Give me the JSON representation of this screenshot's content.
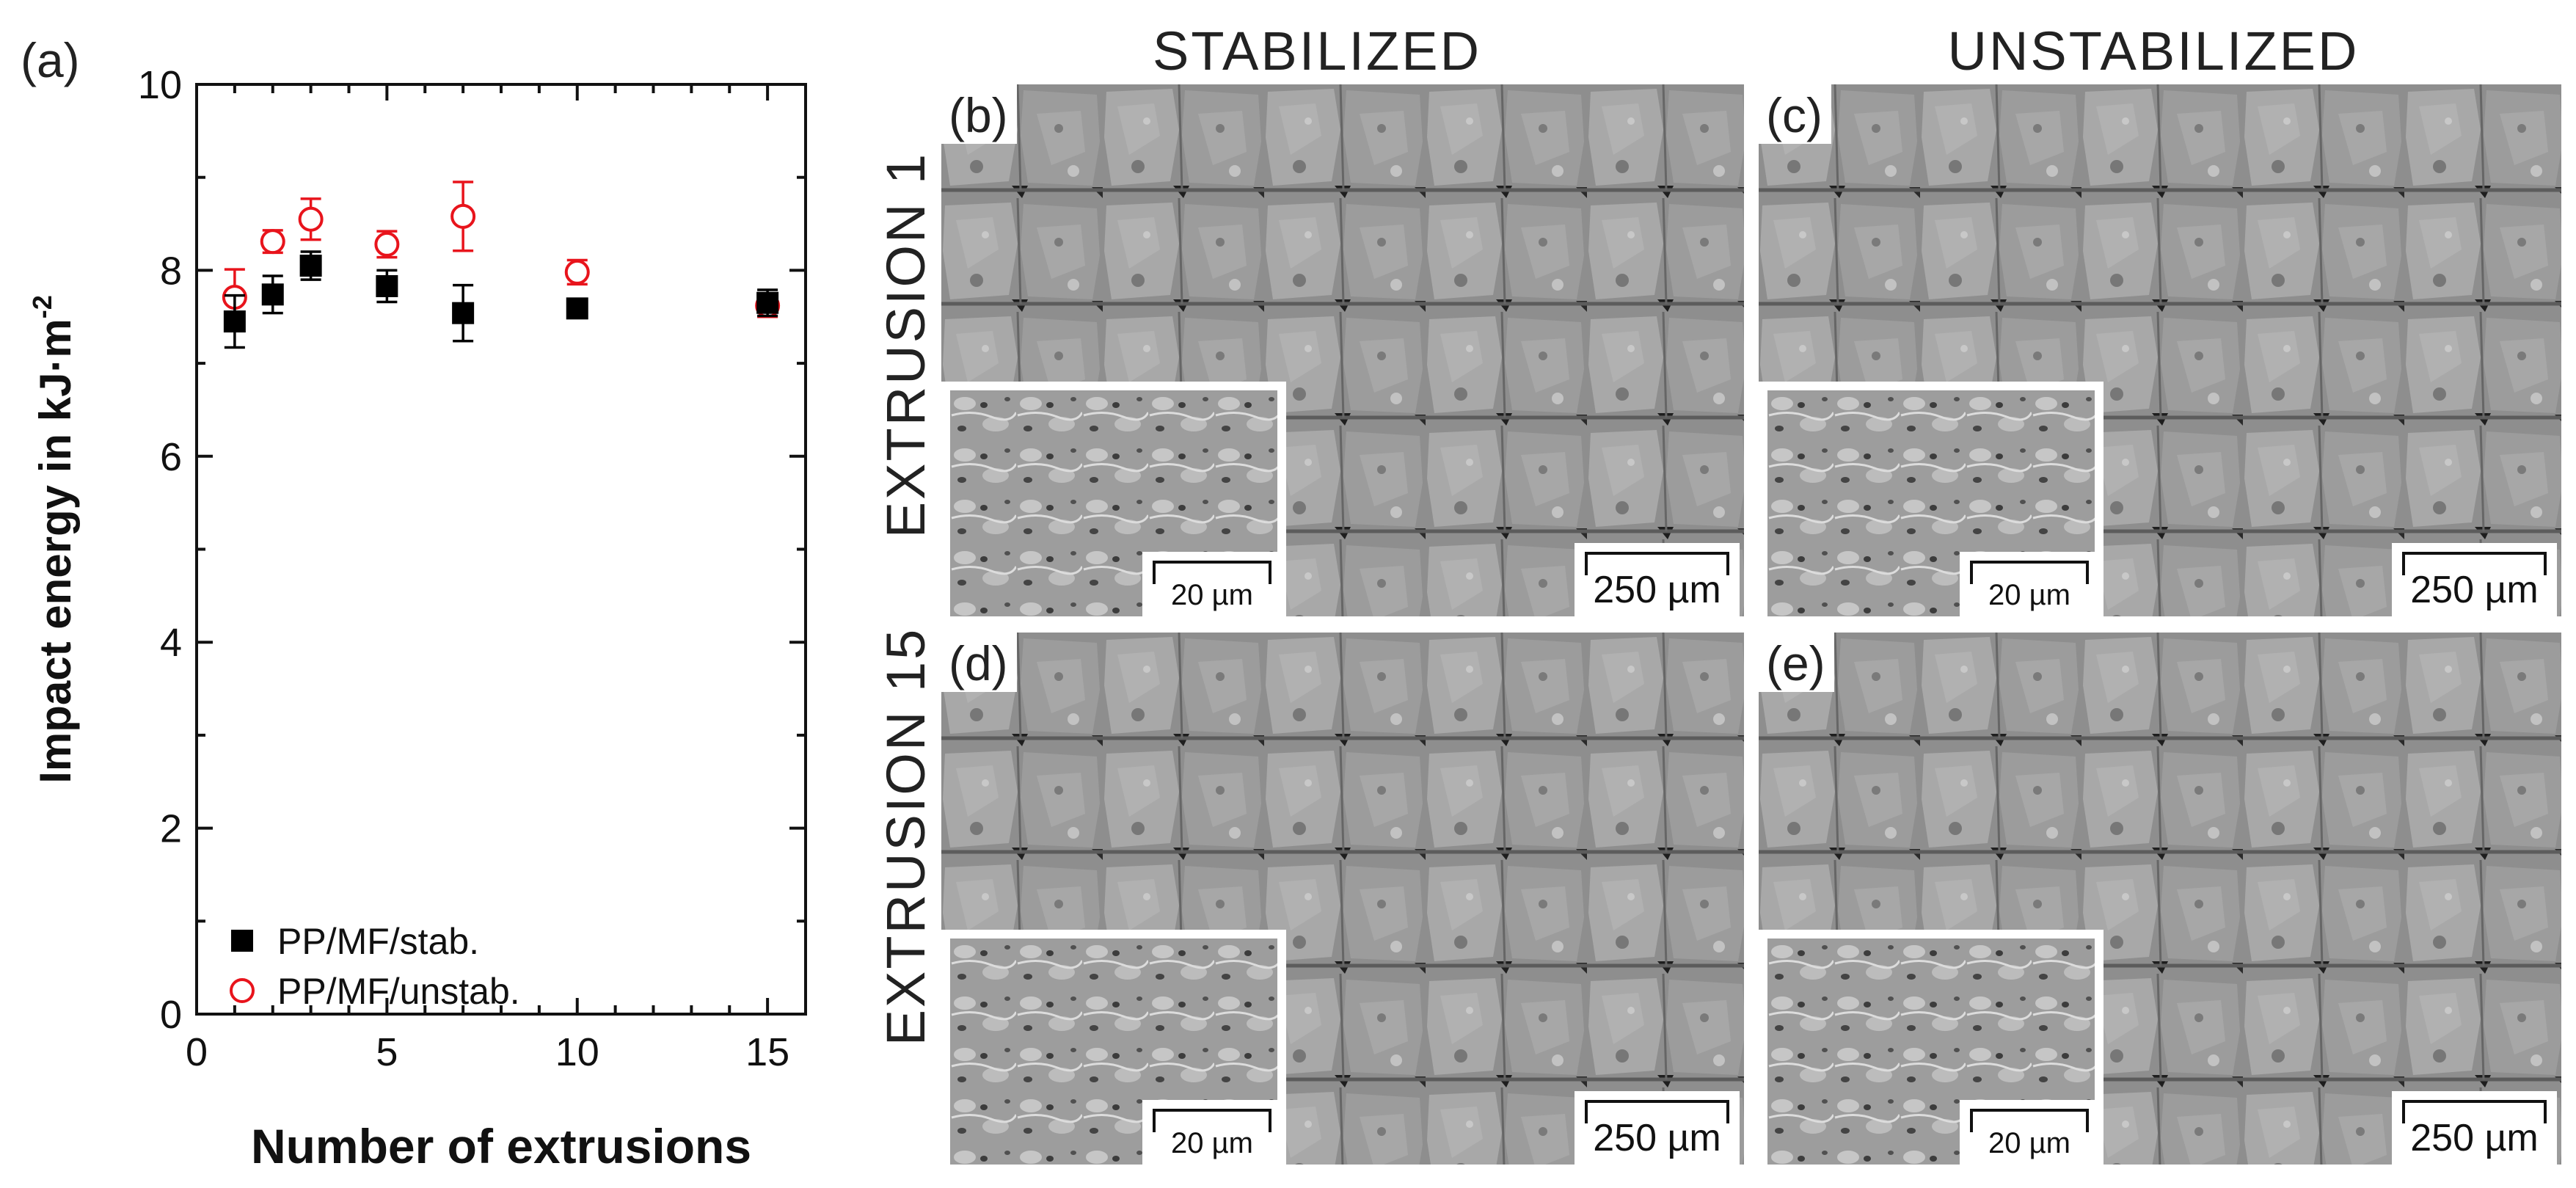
{
  "chart_data": {
    "type": "scatter",
    "panel_label": "(a)",
    "xlabel": "Number of extrusions",
    "ylabel_main": "Impact energy in kJ·m",
    "ylabel_sup": "-2",
    "xlim": [
      0,
      16
    ],
    "ylim": [
      0,
      10
    ],
    "xticks": [
      0,
      5,
      10,
      15
    ],
    "yticks": [
      0,
      2,
      4,
      6,
      8,
      10
    ],
    "legend_position": "bottom-left",
    "series": [
      {
        "name": "PP/MF/stab.",
        "marker": "filled-square",
        "color": "#000000",
        "x": [
          1,
          2,
          3,
          5,
          7,
          10,
          15
        ],
        "y": [
          7.45,
          7.74,
          8.05,
          7.83,
          7.54,
          7.59,
          7.65
        ],
        "err": [
          0.28,
          0.2,
          0.15,
          0.17,
          0.3,
          0.07,
          0.14
        ]
      },
      {
        "name": "PP/MF/unstab.",
        "marker": "open-circle",
        "color": "#e8141c",
        "x": [
          1,
          2,
          3,
          5,
          7,
          10,
          15
        ],
        "y": [
          7.71,
          8.31,
          8.55,
          8.28,
          8.58,
          7.98,
          7.62
        ],
        "err": [
          0.3,
          0.12,
          0.22,
          0.14,
          0.37,
          0.13,
          0.12
        ]
      }
    ]
  },
  "micrographs": {
    "column_headers": [
      "STABILIZED",
      "UNSTABILIZED"
    ],
    "row_headers": [
      "EXTRUSION 1",
      "EXTRUSION 15"
    ],
    "panels": [
      {
        "label": "(b)",
        "scale_main": "250 µm",
        "scale_inset": "20 µm"
      },
      {
        "label": "(c)",
        "scale_main": "250 µm",
        "scale_inset": "20 µm"
      },
      {
        "label": "(d)",
        "scale_main": "250 µm",
        "scale_inset": "20 µm"
      },
      {
        "label": "(e)",
        "scale_main": "250 µm",
        "scale_inset": "20 µm"
      }
    ]
  },
  "colors": {
    "stab": "#000000",
    "unstab": "#e8141c",
    "sem_gray": "#8c8c8c"
  }
}
